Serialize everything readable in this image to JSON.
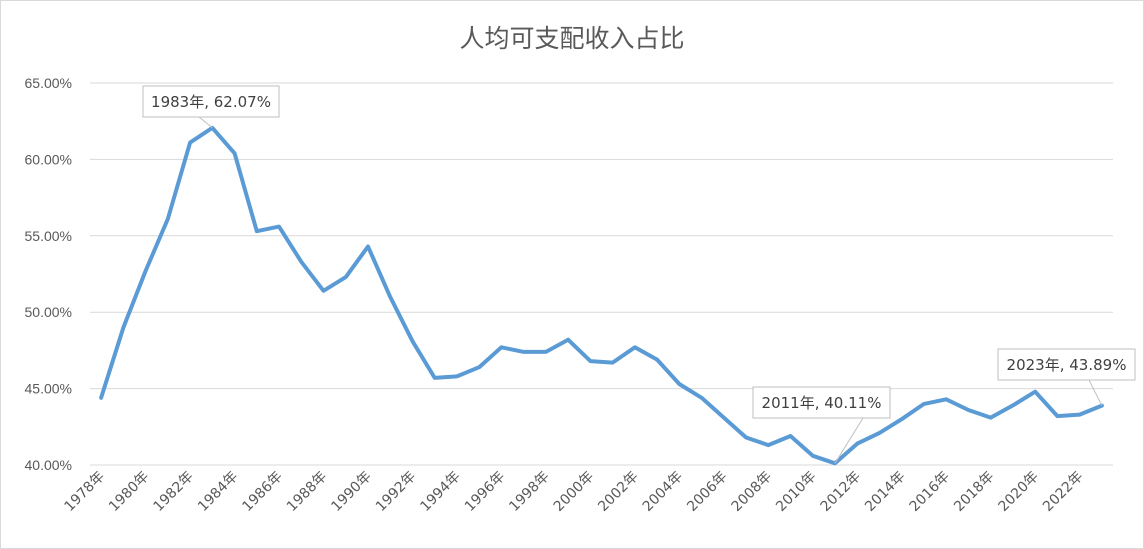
{
  "chart_data": {
    "type": "line",
    "title": "人均可支配收入占比",
    "xlabel": "",
    "ylabel": "",
    "ylim": [
      40,
      65
    ],
    "y_tick_labels": [
      "40.00%",
      "45.00%",
      "50.00%",
      "55.00%",
      "60.00%",
      "65.00%"
    ],
    "grid": true,
    "legend": "none",
    "x": [
      1978,
      1979,
      1980,
      1981,
      1982,
      1983,
      1984,
      1985,
      1986,
      1987,
      1988,
      1989,
      1990,
      1991,
      1992,
      1993,
      1994,
      1995,
      1996,
      1997,
      1998,
      1999,
      2000,
      2001,
      2002,
      2003,
      2004,
      2005,
      2006,
      2007,
      2008,
      2009,
      2010,
      2011,
      2012,
      2013,
      2014,
      2015,
      2016,
      2017,
      2018,
      2019,
      2020,
      2021,
      2022,
      2023
    ],
    "x_tick_labels": [
      "1978年",
      "1980年",
      "1982年",
      "1984年",
      "1986年",
      "1988年",
      "1990年",
      "1992年",
      "1994年",
      "1996年",
      "1998年",
      "2000年",
      "2002年",
      "2004年",
      "2006年",
      "2008年",
      "2010年",
      "2012年",
      "2014年",
      "2016年",
      "2018年",
      "2020年",
      "2022年"
    ],
    "series": [
      {
        "values": [
          44.4,
          49.0,
          52.7,
          56.1,
          61.1,
          62.07,
          60.4,
          55.3,
          55.6,
          53.3,
          51.4,
          52.3,
          54.3,
          51.0,
          48.1,
          45.7,
          45.8,
          46.4,
          47.7,
          47.4,
          47.4,
          48.2,
          46.8,
          46.7,
          47.7,
          46.9,
          45.3,
          44.4,
          43.1,
          41.8,
          41.3,
          41.9,
          40.6,
          40.11,
          41.4,
          42.1,
          43.0,
          44.0,
          44.3,
          43.6,
          43.1,
          43.9,
          44.8,
          43.2,
          43.3,
          43.89
        ],
        "color": "#5b9bd5"
      }
    ],
    "annotations": [
      {
        "label": "1983年, 62.07%",
        "x": 1983,
        "y": 62.07
      },
      {
        "label": "2011年, 40.11%",
        "x": 2011,
        "y": 40.11
      },
      {
        "label": "2023年, 43.89%",
        "x": 2023,
        "y": 43.89
      }
    ]
  }
}
